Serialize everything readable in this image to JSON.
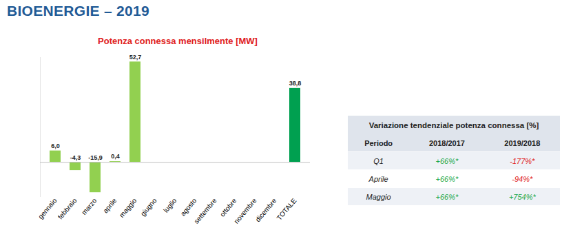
{
  "header": {
    "title": "BIOENERGIE – 2019"
  },
  "chart_data": {
    "type": "bar",
    "title": "Potenza connessa mensilmente [MW]",
    "categories": [
      "gennaio",
      "febbraio",
      "marzo",
      "aprile",
      "maggio",
      "giugno",
      "luglio",
      "agosto",
      "settembre",
      "ottobre",
      "novembre",
      "dicembre",
      "TOTALE"
    ],
    "values": [
      6.0,
      -4.3,
      -15.9,
      0.4,
      52.7,
      null,
      null,
      null,
      null,
      null,
      null,
      null,
      38.8
    ],
    "value_labels": [
      "6,0",
      "-4,3",
      "-15,9",
      "0,4",
      "52,7",
      null,
      null,
      null,
      null,
      null,
      null,
      null,
      "38,8"
    ],
    "colors": [
      "#92d050",
      "#92d050",
      "#92d050",
      "#92d050",
      "#92d050",
      "#92d050",
      "#92d050",
      "#92d050",
      "#92d050",
      "#92d050",
      "#92d050",
      "#92d050",
      "#00a050"
    ],
    "ylim": [
      -18,
      55
    ],
    "yticks": [],
    "grid": false,
    "data_labels": true,
    "tick_labels": "x"
  },
  "table": {
    "title": "Variazione tendenziale potenza connessa [%]",
    "columns": [
      "Periodo",
      "2018/2017",
      "2019/2018"
    ],
    "rows": [
      [
        "Q1",
        "+66%*",
        "-177%*"
      ],
      [
        "Aprile",
        "+66%*",
        "-94%*"
      ],
      [
        "Maggio",
        "+66%*",
        "+754%*"
      ]
    ]
  }
}
